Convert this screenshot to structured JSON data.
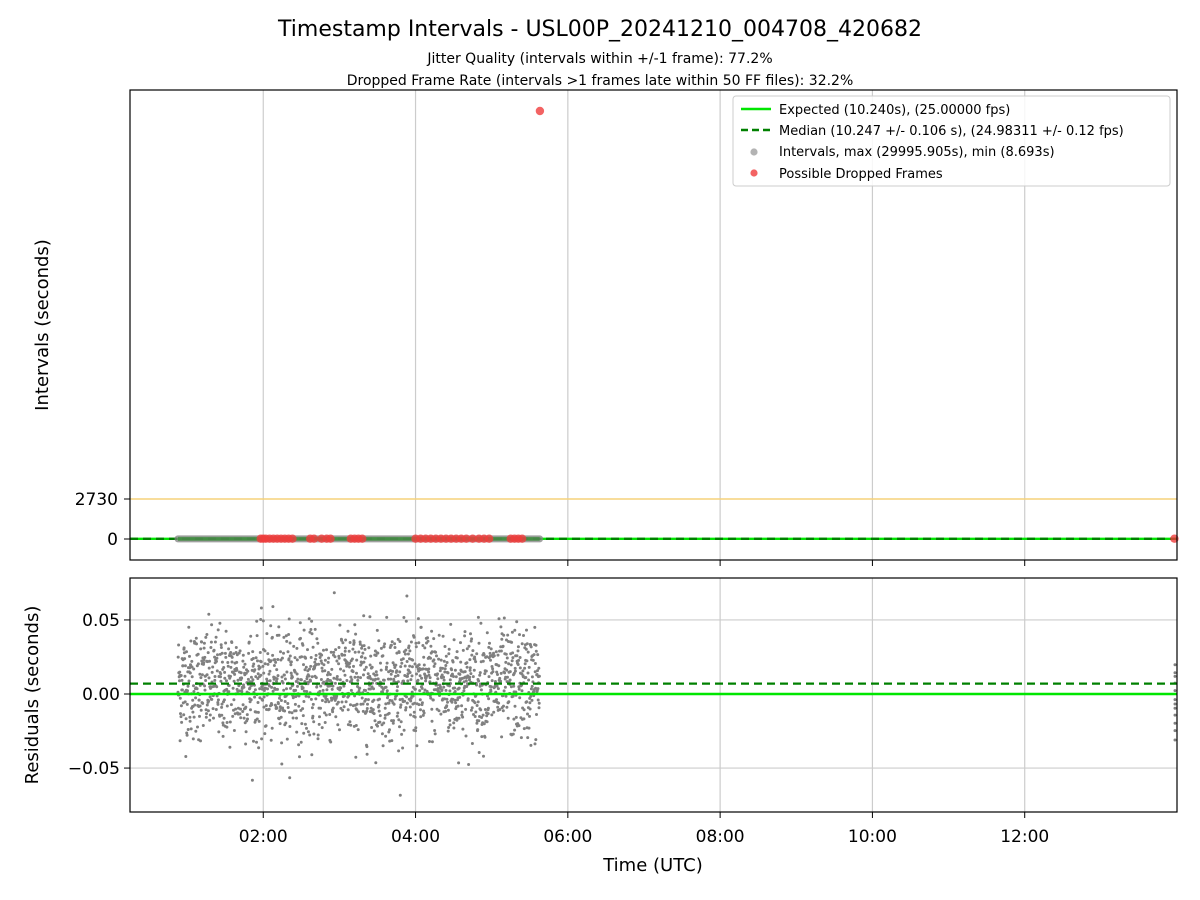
{
  "figure": {
    "title": "Timestamp Intervals - USL00P_20241210_004708_420682",
    "subtitle_1": "Jitter Quality (intervals within +/-1 frame): 77.2%",
    "subtitle_2": "Dropped Frame Rate (intervals >1 frames late within 50 FF files): 32.2%"
  },
  "colors": {
    "expected": "#00e600",
    "median": "#008000",
    "intervals": "#808080",
    "dropped": "#f03c3c",
    "threshold": "#f5d27a",
    "grid": "#cccccc"
  },
  "chart_data": [
    {
      "type": "scatter",
      "panel": "top",
      "ylabel": "Intervals (seconds)",
      "yticks": [
        0,
        2730
      ],
      "grid": "x only",
      "legend_position": "top-right",
      "legend": [
        {
          "label": "Expected (10.240s), (25.00000 fps)",
          "style": "solid line"
        },
        {
          "label": "Median (10.247 +/- 0.106 s), (24.98311 +/- 0.12 fps)",
          "style": "dashed line"
        },
        {
          "label": "Intervals, max (29995.905s), min (8.693s)",
          "style": "marker"
        },
        {
          "label": "Possible Dropped Frames",
          "style": "marker"
        }
      ],
      "expected_interval": 10.24,
      "median_interval": 10.247,
      "threshold_line": 2730,
      "interval_max": 29995.905,
      "interval_min": 8.693,
      "interval_span_hours": [
        0.88,
        5.63
      ],
      "dropped_frames": [
        {
          "t": "01:58",
          "y": 20
        },
        {
          "t": "02:00",
          "y": 20
        },
        {
          "t": "02:02",
          "y": 20
        },
        {
          "t": "02:05",
          "y": 20
        },
        {
          "t": "02:08",
          "y": 20
        },
        {
          "t": "02:11",
          "y": 20
        },
        {
          "t": "02:14",
          "y": 20
        },
        {
          "t": "02:17",
          "y": 20
        },
        {
          "t": "02:20",
          "y": 20
        },
        {
          "t": "02:23",
          "y": 20
        },
        {
          "t": "02:37",
          "y": 20
        },
        {
          "t": "02:40",
          "y": 20
        },
        {
          "t": "02:46",
          "y": 20
        },
        {
          "t": "02:50",
          "y": 20
        },
        {
          "t": "02:53",
          "y": 20
        },
        {
          "t": "03:09",
          "y": 20
        },
        {
          "t": "03:12",
          "y": 20
        },
        {
          "t": "03:15",
          "y": 20
        },
        {
          "t": "03:18",
          "y": 20
        },
        {
          "t": "04:00",
          "y": 20
        },
        {
          "t": "04:04",
          "y": 20
        },
        {
          "t": "04:08",
          "y": 20
        },
        {
          "t": "04:12",
          "y": 20
        },
        {
          "t": "04:16",
          "y": 20
        },
        {
          "t": "04:20",
          "y": 20
        },
        {
          "t": "04:24",
          "y": 20
        },
        {
          "t": "04:28",
          "y": 20
        },
        {
          "t": "04:32",
          "y": 20
        },
        {
          "t": "04:36",
          "y": 20
        },
        {
          "t": "04:40",
          "y": 20
        },
        {
          "t": "04:45",
          "y": 20
        },
        {
          "t": "04:50",
          "y": 20
        },
        {
          "t": "04:54",
          "y": 20
        },
        {
          "t": "04:58",
          "y": 20
        },
        {
          "t": "05:15",
          "y": 20
        },
        {
          "t": "05:18",
          "y": 20
        },
        {
          "t": "05:21",
          "y": 20
        },
        {
          "t": "05:24",
          "y": 20
        },
        {
          "t": "05:38",
          "y": 29995.905
        },
        {
          "t": "13:58",
          "y": 20
        }
      ]
    },
    {
      "type": "scatter",
      "panel": "bottom",
      "ylabel": "Residuals (seconds)",
      "xlabel": "Time (UTC)",
      "xticks": [
        "02:00",
        "04:00",
        "06:00",
        "08:00",
        "10:00",
        "12:00"
      ],
      "yticks": [
        "0.05",
        "0.00",
        "−0.05"
      ],
      "ylim": [
        -0.08,
        0.08
      ],
      "grid": "on",
      "expected_residual": 0.0,
      "median_residual": 0.007,
      "residual_center": 0.007,
      "residual_spread": 0.025,
      "residual_span_hours": [
        0.88,
        5.63
      ],
      "x_range_hours": [
        0.25,
        14.0
      ]
    }
  ]
}
